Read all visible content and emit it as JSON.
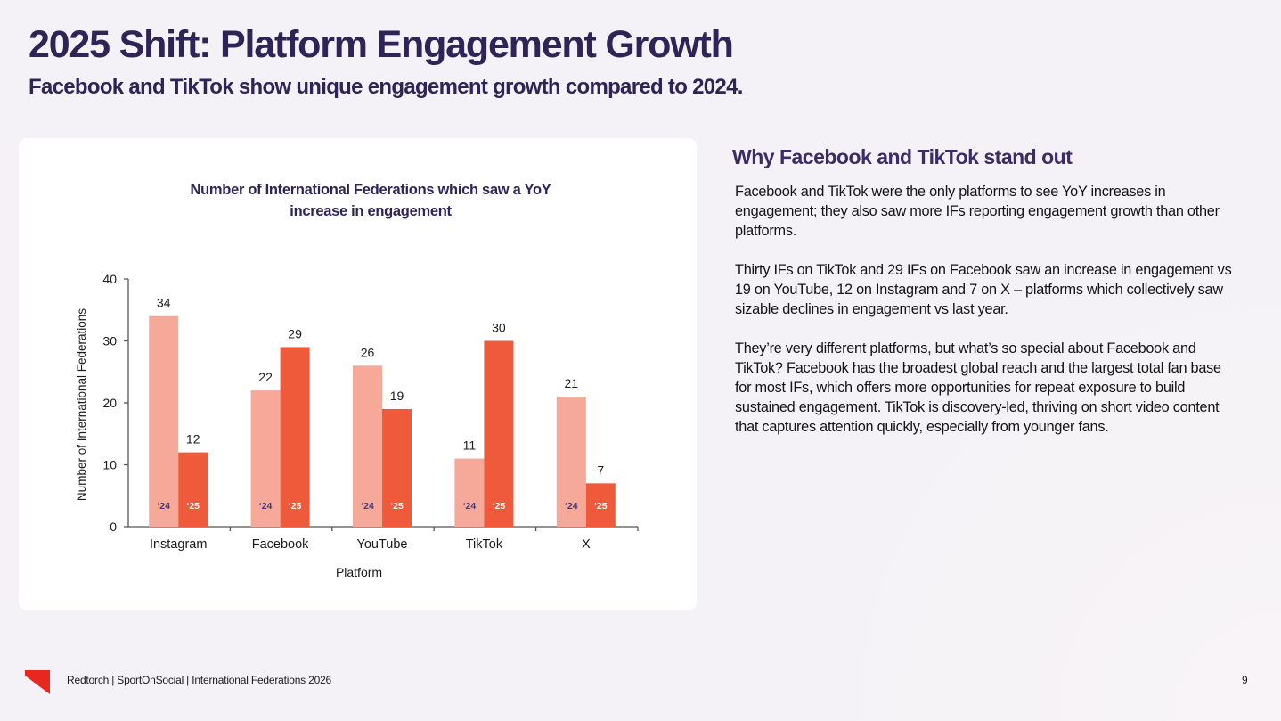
{
  "header": {
    "title": "2025 Shift: Platform Engagement Growth",
    "subtitle": "Facebook and TikTok show unique engagement growth compared to 2024."
  },
  "colors": {
    "title": "#2e2456",
    "bar_2024": "#f6a998",
    "bar_2025": "#ef5a3a",
    "label_2024": "#4a3a78",
    "label_2025": "#ffffff",
    "logo": "#e8281e"
  },
  "chart_data": {
    "type": "bar",
    "title": "Number of International Federations which saw a YoY increase in engagement",
    "xlabel": "Platform",
    "ylabel": "Number of International Federations",
    "ylim": [
      0,
      40
    ],
    "yticks": [
      0,
      10,
      20,
      30,
      40
    ],
    "grid": false,
    "categories": [
      "Instagram",
      "Facebook",
      "YouTube",
      "TikTok",
      "X"
    ],
    "series": [
      {
        "name": "2024",
        "inbar_label": "‘24",
        "values": [
          34,
          22,
          26,
          11,
          21
        ]
      },
      {
        "name": "2025",
        "inbar_label": "‘25",
        "values": [
          12,
          29,
          19,
          30,
          7
        ]
      }
    ]
  },
  "side": {
    "heading": "Why Facebook and TikTok stand out",
    "paragraphs": [
      "Facebook and TikTok were the only platforms to see YoY increases in engagement; they also saw more IFs reporting engagement growth than other platforms.",
      "Thirty IFs on TikTok and 29 IFs on Facebook saw an increase in engagement vs 19 on YouTube, 12 on Instagram and 7 on X – platforms which collectively saw sizable declines in engagement vs last year.",
      "They’re very different platforms, but what’s so special about Facebook and TikTok? Facebook has the broadest global reach and the largest total fan base for most IFs, which offers more opportunities for repeat exposure to build sustained engagement. TikTok is discovery-led, thriving on short video content that captures attention quickly, especially from younger fans."
    ]
  },
  "footer": {
    "text": "Redtorch | SportOnSocial | International Federations 2026",
    "page_number": "9"
  }
}
